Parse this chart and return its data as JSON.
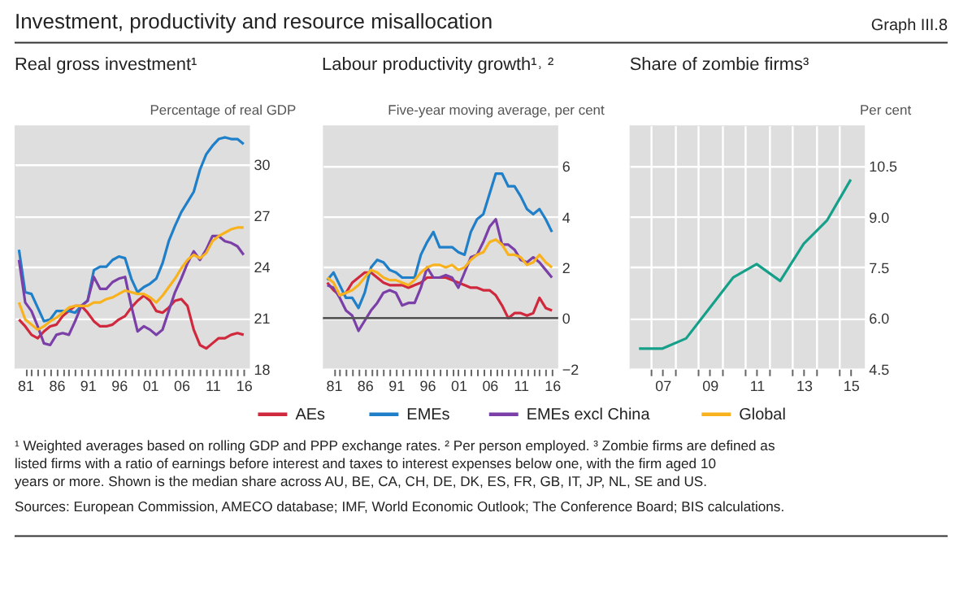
{
  "chart_data": [
    {
      "type": "line",
      "title": "Real gross investment¹",
      "ylabel": "Percentage of real GDP",
      "legend": "bottom",
      "grid": "y",
      "annotations": [
        "Investment, productivity and resource misallocation",
        "Graph III.8"
      ],
      "x": [
        1980,
        1981,
        1982,
        1983,
        1984,
        1985,
        1986,
        1987,
        1988,
        1989,
        1990,
        1991,
        1992,
        1993,
        1994,
        1995,
        1996,
        1997,
        1998,
        1999,
        2000,
        2001,
        2002,
        2003,
        2004,
        2005,
        2006,
        2007,
        2008,
        2009,
        2010,
        2011,
        2012,
        2013,
        2014,
        2015,
        2016
      ],
      "xlim": [
        1979.3,
        2017
      ],
      "xticks": [
        {
          "value": 1981,
          "label": "81"
        },
        {
          "value": 1982,
          "label": null
        },
        {
          "value": 1983,
          "label": null
        },
        {
          "value": 1984,
          "label": null
        },
        {
          "value": 1985,
          "label": null
        },
        {
          "value": 1986,
          "label": "86"
        },
        {
          "value": 1987,
          "label": null
        },
        {
          "value": 1988,
          "label": null
        },
        {
          "value": 1989,
          "label": null
        },
        {
          "value": 1990,
          "label": null
        },
        {
          "value": 1991,
          "label": "91"
        },
        {
          "value": 1992,
          "label": null
        },
        {
          "value": 1993,
          "label": null
        },
        {
          "value": 1994,
          "label": null
        },
        {
          "value": 1995,
          "label": null
        },
        {
          "value": 1996,
          "label": "96"
        },
        {
          "value": 1997,
          "label": null
        },
        {
          "value": 1998,
          "label": null
        },
        {
          "value": 1999,
          "label": null
        },
        {
          "value": 2000,
          "label": null
        },
        {
          "value": 2001,
          "label": "01"
        },
        {
          "value": 2002,
          "label": null
        },
        {
          "value": 2003,
          "label": null
        },
        {
          "value": 2004,
          "label": null
        },
        {
          "value": 2005,
          "label": null
        },
        {
          "value": 2006,
          "label": "06"
        },
        {
          "value": 2007,
          "label": null
        },
        {
          "value": 2008,
          "label": null
        },
        {
          "value": 2009,
          "label": null
        },
        {
          "value": 2010,
          "label": null
        },
        {
          "value": 2011,
          "label": "11"
        },
        {
          "value": 2012,
          "label": null
        },
        {
          "value": 2013,
          "label": null
        },
        {
          "value": 2014,
          "label": null
        },
        {
          "value": 2015,
          "label": null
        },
        {
          "value": 2016,
          "label": "16"
        }
      ],
      "ylim": [
        18,
        32.3
      ],
      "yticks": [
        18,
        21,
        24,
        27,
        30
      ],
      "series": [
        {
          "name": "AEs",
          "color": "#d0283c",
          "values": [
            20.9,
            20.5,
            20.0,
            19.8,
            20.2,
            20.5,
            20.6,
            21.1,
            21.4,
            21.7,
            21.7,
            21.3,
            20.8,
            20.5,
            20.5,
            20.6,
            20.9,
            21.1,
            21.6,
            22.0,
            22.3,
            22.0,
            21.4,
            21.3,
            21.6,
            22.0,
            22.1,
            21.7,
            20.3,
            19.4,
            19.2,
            19.5,
            19.8,
            19.8,
            20.0,
            20.1,
            20.0
          ]
        },
        {
          "name": "EMEs",
          "color": "#1f7fc8",
          "values": [
            25.0,
            22.5,
            22.4,
            21.6,
            20.8,
            20.9,
            21.4,
            21.4,
            21.4,
            21.3,
            21.7,
            22.0,
            23.8,
            24.0,
            24.0,
            24.4,
            24.6,
            24.5,
            23.3,
            22.5,
            22.8,
            23.0,
            23.3,
            24.2,
            25.5,
            26.4,
            27.2,
            27.8,
            28.4,
            29.7,
            30.6,
            31.1,
            31.5,
            31.6,
            31.5,
            31.5,
            31.2
          ]
        },
        {
          "name": "EMEs excl China",
          "color": "#7b3fa8",
          "values": [
            24.4,
            21.9,
            21.4,
            20.5,
            19.5,
            19.4,
            20.0,
            20.1,
            20.0,
            20.8,
            21.7,
            22.0,
            23.4,
            22.7,
            22.7,
            23.1,
            23.3,
            23.4,
            21.7,
            20.2,
            20.5,
            20.3,
            20.0,
            20.3,
            21.4,
            22.5,
            23.3,
            24.2,
            24.9,
            24.4,
            25.0,
            25.8,
            25.8,
            25.5,
            25.4,
            25.2,
            24.7
          ]
        },
        {
          "name": "Global",
          "color": "#f7b21e",
          "values": [
            21.9,
            20.9,
            20.6,
            20.3,
            20.5,
            20.8,
            21.0,
            21.3,
            21.6,
            21.7,
            21.7,
            21.7,
            21.9,
            21.9,
            22.1,
            22.2,
            22.4,
            22.6,
            22.5,
            22.4,
            22.4,
            22.2,
            21.9,
            22.3,
            22.8,
            23.3,
            23.9,
            24.4,
            24.7,
            24.5,
            24.8,
            25.5,
            25.8,
            26.0,
            26.2,
            26.3,
            26.3
          ]
        }
      ]
    },
    {
      "type": "line",
      "title": "Labour productivity growth¹˒ ²",
      "ylabel": "Five-year moving average, per cent",
      "legend": "bottom",
      "grid": "y",
      "x": [
        1980,
        1981,
        1982,
        1983,
        1984,
        1985,
        1986,
        1987,
        1988,
        1989,
        1990,
        1991,
        1992,
        1993,
        1994,
        1995,
        1996,
        1997,
        1998,
        1999,
        2000,
        2001,
        2002,
        2003,
        2004,
        2005,
        2006,
        2007,
        2008,
        2009,
        2010,
        2011,
        2012,
        2013,
        2014,
        2015,
        2016
      ],
      "xlim": [
        1979.3,
        2017
      ],
      "xticks": [
        {
          "value": 1981,
          "label": "81"
        },
        {
          "value": 1982,
          "label": null
        },
        {
          "value": 1983,
          "label": null
        },
        {
          "value": 1984,
          "label": null
        },
        {
          "value": 1985,
          "label": null
        },
        {
          "value": 1986,
          "label": "86"
        },
        {
          "value": 1987,
          "label": null
        },
        {
          "value": 1988,
          "label": null
        },
        {
          "value": 1989,
          "label": null
        },
        {
          "value": 1990,
          "label": null
        },
        {
          "value": 1991,
          "label": "91"
        },
        {
          "value": 1992,
          "label": null
        },
        {
          "value": 1993,
          "label": null
        },
        {
          "value": 1994,
          "label": null
        },
        {
          "value": 1995,
          "label": null
        },
        {
          "value": 1996,
          "label": "96"
        },
        {
          "value": 1997,
          "label": null
        },
        {
          "value": 1998,
          "label": null
        },
        {
          "value": 1999,
          "label": null
        },
        {
          "value": 2000,
          "label": null
        },
        {
          "value": 2001,
          "label": "01"
        },
        {
          "value": 2002,
          "label": null
        },
        {
          "value": 2003,
          "label": null
        },
        {
          "value": 2004,
          "label": null
        },
        {
          "value": 2005,
          "label": null
        },
        {
          "value": 2006,
          "label": "06"
        },
        {
          "value": 2007,
          "label": null
        },
        {
          "value": 2008,
          "label": null
        },
        {
          "value": 2009,
          "label": null
        },
        {
          "value": 2010,
          "label": null
        },
        {
          "value": 2011,
          "label": "11"
        },
        {
          "value": 2012,
          "label": null
        },
        {
          "value": 2013,
          "label": null
        },
        {
          "value": 2014,
          "label": null
        },
        {
          "value": 2015,
          "label": null
        },
        {
          "value": 2016,
          "label": "16"
        }
      ],
      "ylim": [
        -2,
        7.6
      ],
      "yticks": [
        {
          "value": -2,
          "label": "−2"
        },
        0,
        2,
        4,
        6
      ],
      "ref_lines": [
        {
          "axis": "y",
          "value": 0,
          "color": "#555555"
        }
      ],
      "series": [
        {
          "name": "AEs",
          "color": "#d0283c",
          "values": [
            1.4,
            1.1,
            0.9,
            1.0,
            1.4,
            1.6,
            1.8,
            1.8,
            1.6,
            1.4,
            1.3,
            1.3,
            1.3,
            1.2,
            1.3,
            1.4,
            1.6,
            1.6,
            1.6,
            1.6,
            1.5,
            1.4,
            1.3,
            1.2,
            1.2,
            1.1,
            1.1,
            0.9,
            0.5,
            0.0,
            0.2,
            0.2,
            0.1,
            0.2,
            0.8,
            0.4,
            0.3
          ]
        },
        {
          "name": "EMEs",
          "color": "#1f7fc8",
          "values": [
            1.5,
            1.8,
            1.3,
            0.8,
            0.8,
            0.4,
            1.0,
            2.0,
            2.3,
            2.2,
            1.9,
            1.8,
            1.6,
            1.6,
            1.6,
            2.5,
            3.0,
            3.4,
            2.8,
            2.8,
            2.8,
            2.6,
            2.5,
            3.4,
            3.9,
            4.1,
            4.9,
            5.7,
            5.7,
            5.2,
            5.2,
            4.8,
            4.3,
            4.1,
            4.3,
            3.9,
            3.4
          ]
        },
        {
          "name": "EMEs excl China",
          "color": "#7b3fa8",
          "values": [
            1.3,
            1.2,
            0.8,
            0.3,
            0.1,
            -0.5,
            -0.1,
            0.3,
            0.6,
            1.0,
            1.1,
            1.0,
            0.5,
            0.6,
            0.6,
            1.2,
            2.0,
            1.6,
            1.6,
            1.7,
            1.6,
            1.2,
            1.8,
            2.4,
            2.5,
            3.0,
            3.6,
            3.9,
            2.9,
            2.9,
            2.7,
            2.3,
            2.2,
            2.4,
            2.2,
            1.9,
            1.6
          ]
        },
        {
          "name": "Global",
          "color": "#f7b21e",
          "values": [
            1.6,
            1.4,
            0.9,
            1.0,
            1.1,
            1.3,
            1.6,
            1.9,
            1.8,
            1.6,
            1.5,
            1.5,
            1.4,
            1.3,
            1.5,
            1.8,
            2.0,
            2.1,
            2.1,
            2.0,
            2.1,
            1.9,
            2.0,
            2.3,
            2.5,
            2.6,
            3.0,
            3.1,
            2.9,
            2.5,
            2.5,
            2.4,
            2.1,
            2.2,
            2.5,
            2.2,
            2.0
          ]
        }
      ]
    },
    {
      "type": "line",
      "title": "Share of zombie firms³",
      "ylabel": "Per cent",
      "grid": true,
      "annotations": [
        "¹ Weighted averages based on rolling GDP and PPP exchange rates.",
        "² Per person employed.",
        "³ Zombie firms are defined as listed firms with a ratio of earnings before interest and taxes to interest expenses below one, with the firm aged 10 years or more. Shown is the median share across AU, BE, CA, CH, DE, DK, ES, FR, GB, IT, JP, NL, SE and US.",
        "Sources: European Commission, AMECO database; IMF, World Economic Outlook; The Conference Board; BIS calculations."
      ],
      "x": [
        2006,
        2007,
        2008,
        2009,
        2010,
        2011,
        2012,
        2013,
        2014,
        2015
      ],
      "xlim": [
        2005.6,
        2015.6
      ],
      "xticks": [
        {
          "value": 2006.5,
          "label": null
        },
        {
          "value": 2007,
          "label": "07"
        },
        {
          "value": 2007.5,
          "label": null
        },
        {
          "value": 2008.5,
          "label": null
        },
        {
          "value": 2009,
          "label": "09"
        },
        {
          "value": 2009.5,
          "label": null
        },
        {
          "value": 2010.5,
          "label": null
        },
        {
          "value": 2011,
          "label": "11"
        },
        {
          "value": 2011.5,
          "label": null
        },
        {
          "value": 2012.5,
          "label": null
        },
        {
          "value": 2013,
          "label": "13"
        },
        {
          "value": 2013.5,
          "label": null
        },
        {
          "value": 2014.5,
          "label": null
        },
        {
          "value": 2015,
          "label": "15"
        }
      ],
      "ylim": [
        4.5,
        11.7
      ],
      "yticks": [
        {
          "value": 4.5,
          "label": "4.5"
        },
        {
          "value": 6,
          "label": "6.0"
        },
        {
          "value": 7.5,
          "label": "7.5"
        },
        {
          "value": 9,
          "label": "9.0"
        },
        {
          "value": 10.5,
          "label": "10.5"
        }
      ],
      "series": [
        {
          "color": "#16a08a",
          "values": [
            5.1,
            5.1,
            5.4,
            6.3,
            7.2,
            7.6,
            7.1,
            8.2,
            8.9,
            10.1
          ]
        }
      ]
    }
  ]
}
